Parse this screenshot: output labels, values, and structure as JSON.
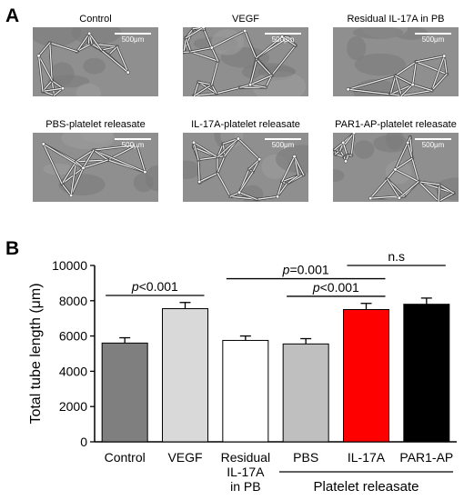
{
  "panel_a": {
    "letter": "A",
    "scale_label": "500μm",
    "images": [
      {
        "caption": "Control",
        "density": "medium"
      },
      {
        "caption": "VEGF",
        "density": "high"
      },
      {
        "caption": "Residual IL-17A in PB",
        "density": "low"
      },
      {
        "caption": "PBS-platelet releasate",
        "density": "low"
      },
      {
        "caption": "IL-17A-platelet releasate",
        "density": "high"
      },
      {
        "caption": "PAR1-AP-platelet releasate",
        "density": "high"
      }
    ]
  },
  "panel_b": {
    "letter": "B"
  },
  "colors": {
    "axis": "#000000",
    "bar_outline": "#000000",
    "image_bg": "#8f8f8f",
    "tube": "#ececec"
  },
  "chart_data": {
    "type": "bar",
    "ylabel": "Total tube length (μm)",
    "ylim": [
      0,
      10000
    ],
    "yticks": [
      0,
      2000,
      4000,
      6000,
      8000,
      10000
    ],
    "ytick_labels": [
      "0",
      "2000",
      "4000",
      "6000",
      "8000",
      "10000"
    ],
    "categories": [
      "Control",
      "VEGF",
      "Residual IL-17A in PB",
      "PBS",
      "IL-17A",
      "PAR1-AP"
    ],
    "category_lines": [
      [
        "Control"
      ],
      [
        "VEGF"
      ],
      [
        "Residual",
        "IL-17A",
        "in PB"
      ],
      [
        "PBS"
      ],
      [
        "IL-17A"
      ],
      [
        "PAR1-AP"
      ]
    ],
    "values": [
      5600,
      7550,
      5750,
      5550,
      7500,
      7800
    ],
    "errors": [
      300,
      350,
      250,
      300,
      350,
      350
    ],
    "bar_colors": [
      "#7f7f7f",
      "#d9d9d9",
      "#ffffff",
      "#bfbfbf",
      "#ff0000",
      "#000000"
    ],
    "group_label": "Platelet releasate",
    "group_members": [
      "PBS",
      "IL-17A",
      "PAR1-AP"
    ],
    "annotations": [
      {
        "from": "Control",
        "to": "VEGF",
        "p_symbol": "p",
        "text": "<0.001",
        "y": 8300
      },
      {
        "from": "Residual IL-17A in PB",
        "to": "IL-17A",
        "p_symbol": "p",
        "text": "=0.001",
        "y": 9250
      },
      {
        "from": "PBS",
        "to": "IL-17A",
        "p_symbol": "p",
        "text": "<0.001",
        "y": 8250
      },
      {
        "from": "IL-17A",
        "to": "PAR1-AP",
        "p_symbol": "",
        "text": "n.s",
        "y": 10000
      }
    ]
  }
}
